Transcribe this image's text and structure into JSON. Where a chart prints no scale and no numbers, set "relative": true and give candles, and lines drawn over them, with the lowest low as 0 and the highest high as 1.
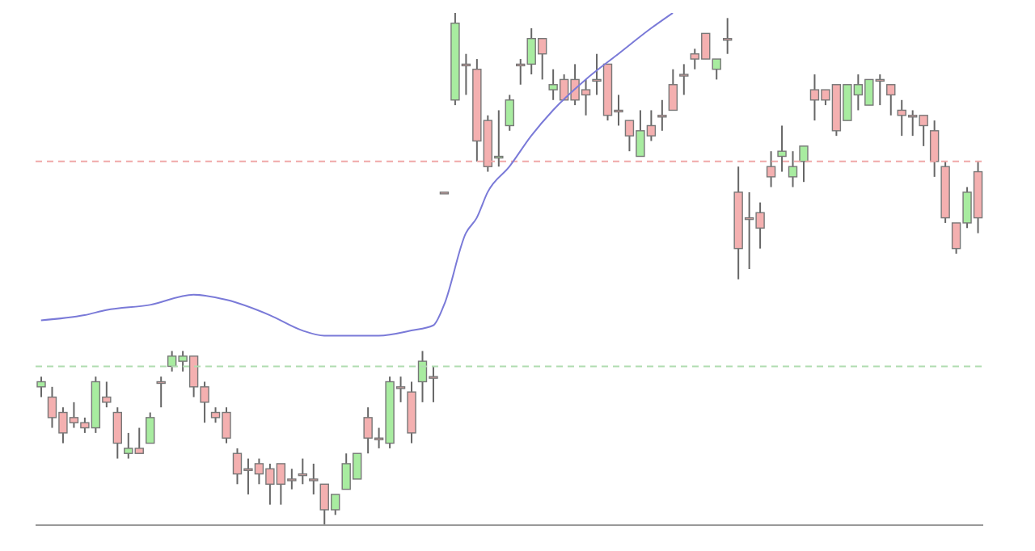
{
  "chart_data": {
    "type": "candlestick",
    "relative": true,
    "grid": false,
    "legend": false,
    "categories": [
      null,
      null,
      null,
      null,
      null,
      null,
      null,
      null,
      null,
      null,
      null,
      null,
      null,
      null,
      null,
      null,
      null,
      null,
      null,
      null,
      null,
      null,
      null,
      null,
      null,
      null,
      null,
      null,
      null,
      null,
      null,
      null,
      null,
      null,
      null,
      null,
      null,
      null,
      null,
      null,
      null,
      null,
      null,
      null,
      null,
      null,
      null,
      null,
      null,
      null,
      null,
      null,
      null,
      null,
      null,
      null,
      null,
      null,
      null,
      null,
      null,
      null,
      null,
      null,
      null,
      null,
      null,
      null,
      null,
      null,
      null,
      null,
      null,
      null,
      null,
      null,
      null,
      null,
      null,
      null,
      null,
      null,
      null,
      null,
      null,
      null,
      null
    ],
    "ohlc": [
      [
        0.27,
        0.29,
        0.25,
        0.28
      ],
      [
        0.25,
        0.27,
        0.19,
        0.21
      ],
      [
        0.22,
        0.23,
        0.16,
        0.18
      ],
      [
        0.21,
        0.24,
        0.19,
        0.2
      ],
      [
        0.2,
        0.21,
        0.18,
        0.19
      ],
      [
        0.19,
        0.29,
        0.18,
        0.28
      ],
      [
        0.25,
        0.28,
        0.23,
        0.24
      ],
      [
        0.22,
        0.23,
        0.13,
        0.16
      ],
      [
        0.14,
        0.18,
        0.13,
        0.15
      ],
      [
        0.15,
        0.19,
        0.14,
        0.14
      ],
      [
        0.16,
        0.22,
        0.16,
        0.21
      ],
      [
        0.28,
        0.29,
        0.23,
        0.28
      ],
      [
        0.31,
        0.34,
        0.3,
        0.33
      ],
      [
        0.32,
        0.34,
        0.3,
        0.33
      ],
      [
        0.33,
        0.33,
        0.25,
        0.27
      ],
      [
        0.27,
        0.28,
        0.2,
        0.24
      ],
      [
        0.22,
        0.23,
        0.2,
        0.21
      ],
      [
        0.22,
        0.23,
        0.16,
        0.17
      ],
      [
        0.14,
        0.15,
        0.08,
        0.1
      ],
      [
        0.11,
        0.13,
        0.06,
        0.11
      ],
      [
        0.12,
        0.13,
        0.08,
        0.1
      ],
      [
        0.11,
        0.12,
        0.04,
        0.08
      ],
      [
        0.12,
        0.12,
        0.04,
        0.08
      ],
      [
        0.09,
        0.11,
        0.07,
        0.09
      ],
      [
        0.1,
        0.13,
        0.08,
        0.1
      ],
      [
        0.09,
        0.12,
        0.06,
        0.09
      ],
      [
        0.08,
        0.08,
        0,
        0.03
      ],
      [
        0.03,
        0.06,
        0.02,
        0.06
      ],
      [
        0.07,
        0.14,
        0.07,
        0.12
      ],
      [
        0.09,
        0.14,
        0.09,
        0.14
      ],
      [
        0.21,
        0.23,
        0.14,
        0.17
      ],
      [
        0.17,
        0.19,
        0.15,
        0.17
      ],
      [
        0.16,
        0.29,
        0.15,
        0.28
      ],
      [
        0.27,
        0.29,
        0.24,
        0.27
      ],
      [
        0.26,
        0.28,
        0.16,
        0.18
      ],
      [
        0.28,
        0.34,
        0.24,
        0.32
      ],
      [
        0.29,
        0.31,
        0.24,
        0.29
      ],
      [
        0.65,
        0.65,
        0.65,
        0.65
      ],
      [
        0.83,
        1,
        0.82,
        0.98
      ],
      [
        0.9,
        0.92,
        0.84,
        0.9
      ],
      [
        0.89,
        0.91,
        0.71,
        0.75
      ],
      [
        0.79,
        0.8,
        0.69,
        0.7
      ],
      [
        0.72,
        0.81,
        0.7,
        0.72
      ],
      [
        0.78,
        0.84,
        0.77,
        0.83
      ],
      [
        0.9,
        0.91,
        0.86,
        0.9
      ],
      [
        0.9,
        0.97,
        0.88,
        0.95
      ],
      [
        0.95,
        0.95,
        0.87,
        0.92
      ],
      [
        0.85,
        0.89,
        0.83,
        0.86
      ],
      [
        0.87,
        0.88,
        0.83,
        0.83
      ],
      [
        0.87,
        0.9,
        0.82,
        0.83
      ],
      [
        0.85,
        0.87,
        0.8,
        0.84
      ],
      [
        0.87,
        0.92,
        0.84,
        0.87
      ],
      [
        0.9,
        0.9,
        0.79,
        0.8
      ],
      [
        0.81,
        0.84,
        0.78,
        0.81
      ],
      [
        0.79,
        0.79,
        0.73,
        0.76
      ],
      [
        0.72,
        0.81,
        0.72,
        0.77
      ],
      [
        0.78,
        0.81,
        0.75,
        0.76
      ],
      [
        0.8,
        0.83,
        0.77,
        0.8
      ],
      [
        0.86,
        0.89,
        0.81,
        0.81
      ],
      [
        0.88,
        0.9,
        0.84,
        0.88
      ],
      [
        0.92,
        0.93,
        0.89,
        0.91
      ],
      [
        0.96,
        0.96,
        0.91,
        0.91
      ],
      [
        0.89,
        0.91,
        0.87,
        0.91
      ],
      [
        0.95,
        0.99,
        0.92,
        0.95
      ],
      [
        0.65,
        0.7,
        0.48,
        0.54
      ],
      [
        0.6,
        0.65,
        0.5,
        0.6
      ],
      [
        0.61,
        0.63,
        0.54,
        0.58
      ],
      [
        0.7,
        0.73,
        0.66,
        0.68
      ],
      [
        0.72,
        0.78,
        0.69,
        0.73
      ],
      [
        0.68,
        0.73,
        0.66,
        0.7
      ],
      [
        0.71,
        0.74,
        0.67,
        0.74
      ],
      [
        0.85,
        0.88,
        0.79,
        0.83
      ],
      [
        0.85,
        0.85,
        0.82,
        0.83
      ],
      [
        0.86,
        0.86,
        0.76,
        0.77
      ],
      [
        0.79,
        0.86,
        0.79,
        0.86
      ],
      [
        0.84,
        0.88,
        0.81,
        0.86
      ],
      [
        0.82,
        0.87,
        0.82,
        0.87
      ],
      [
        0.87,
        0.88,
        0.82,
        0.87
      ],
      [
        0.86,
        0.86,
        0.8,
        0.84
      ],
      [
        0.81,
        0.83,
        0.76,
        0.8
      ],
      [
        0.8,
        0.81,
        0.76,
        0.8
      ],
      [
        0.8,
        0.8,
        0.74,
        0.78
      ],
      [
        0.77,
        0.79,
        0.68,
        0.71
      ],
      [
        0.7,
        0.71,
        0.59,
        0.6
      ],
      [
        0.59,
        0.59,
        0.53,
        0.54
      ],
      [
        0.59,
        0.66,
        0.58,
        0.65
      ],
      [
        0.69,
        0.71,
        0.57,
        0.6
      ]
    ],
    "colors": [
      "#a8eca0",
      "#f4b0b0",
      "#f4b0b0",
      "#f4b0b0",
      "#f4b0b0",
      "#a8eca0",
      "#f4b0b0",
      "#f4b0b0",
      "#a8eca0",
      "#f4b0b0",
      "#a8eca0",
      "#f4b0b0",
      "#a8eca0",
      "#a8eca0",
      "#f4b0b0",
      "#f4b0b0",
      "#f4b0b0",
      "#f4b0b0",
      "#f4b0b0",
      "#f4b0b0",
      "#f4b0b0",
      "#f4b0b0",
      "#f4b0b0",
      "#f4b0b0",
      "#f4b0b0",
      "#f4b0b0",
      "#f4b0b0",
      "#a8eca0",
      "#a8eca0",
      "#a8eca0",
      "#f4b0b0",
      "#f4b0b0",
      "#a8eca0",
      "#f4b0b0",
      "#f4b0b0",
      "#a8eca0",
      "#f4b0b0",
      "#f4b0b0",
      "#a8eca0",
      "#f4b0b0",
      "#f4b0b0",
      "#f4b0b0",
      "#a8eca0",
      "#a8eca0",
      "#f4b0b0",
      "#a8eca0",
      "#f4b0b0",
      "#a8eca0",
      "#f4b0b0",
      "#f4b0b0",
      "#f4b0b0",
      "#f4b0b0",
      "#f4b0b0",
      "#f4b0b0",
      "#f4b0b0",
      "#a8eca0",
      "#f4b0b0",
      "#f4b0b0",
      "#f4b0b0",
      "#f4b0b0",
      "#f4b0b0",
      "#f4b0b0",
      "#a8eca0",
      "#f4b0b0",
      "#f4b0b0",
      "#f4b0b0",
      "#f4b0b0",
      "#f4b0b0",
      "#a8eca0",
      "#a8eca0",
      "#a8eca0",
      "#f4b0b0",
      "#f4b0b0",
      "#f4b0b0",
      "#a8eca0",
      "#a8eca0",
      "#a8eca0",
      "#f4b0b0",
      "#f4b0b0",
      "#f4b0b0",
      "#f4b0b0",
      "#f4b0b0",
      "#f4b0b0",
      "#f4b0b0",
      "#f4b0b0",
      "#a8eca0",
      "#f4b0b0"
    ],
    "series": [
      {
        "type": "line",
        "color": "#7a7ad8",
        "values": [
          0.4,
          null,
          null,
          null,
          0.41,
          null,
          0.42,
          null,
          null,
          null,
          0.43,
          null,
          null,
          null,
          0.45,
          null,
          null,
          0.44,
          null,
          null,
          null,
          0.41,
          null,
          null,
          0.38,
          null,
          0.37,
          null,
          null,
          null,
          null,
          0.37,
          null,
          null,
          0.38,
          null,
          0.39,
          0.43,
          null,
          0.57,
          0.6,
          0.65,
          null,
          0.7,
          null,
          0.76,
          null,
          0.81,
          null,
          null,
          0.87,
          null,
          null,
          0.92,
          null,
          null,
          0.97,
          null,
          1,
          null,
          null,
          null,
          null,
          null,
          null,
          null,
          null,
          null,
          null,
          null,
          null,
          null,
          null,
          null,
          null,
          null,
          null,
          null,
          null,
          null,
          null,
          null,
          null,
          null,
          null,
          null,
          null
        ]
      }
    ],
    "ref_lines": [
      {
        "axis": "y",
        "value": 0.71,
        "color": "#f0a8a8",
        "line_style": "dashed"
      },
      {
        "axis": "y",
        "value": 0.31,
        "color": "#b0dcb0",
        "line_style": "dashed"
      }
    ]
  }
}
